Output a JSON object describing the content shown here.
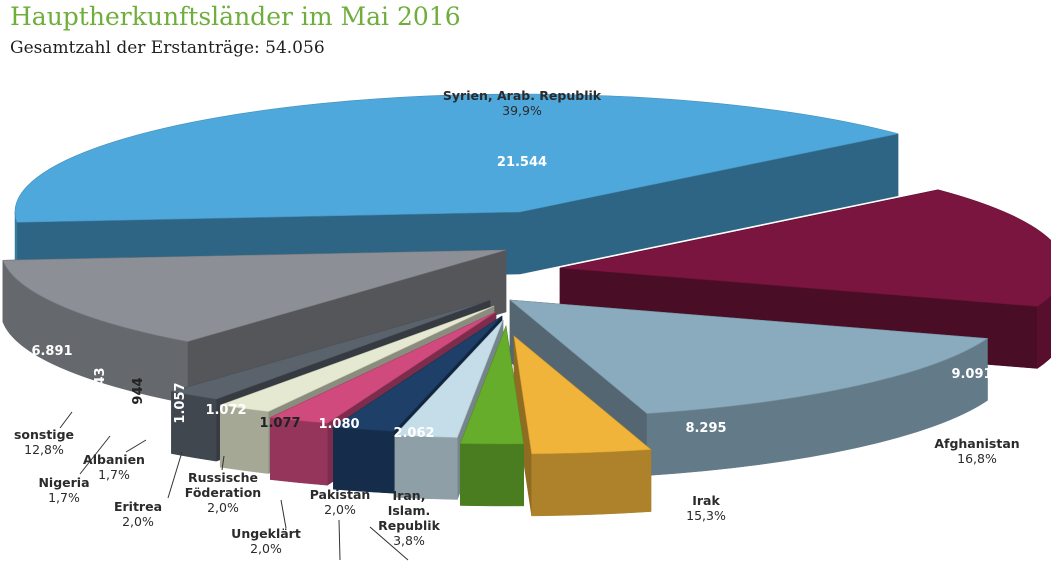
{
  "title": "Hauptherkunftsländer im Mai 2016",
  "subtitle": "Gesamtzahl der Erstanträge: 54.056",
  "chart_data": {
    "type": "pie",
    "title": "Hauptherkunftsländer im Mai 2016",
    "subtitle": "Gesamtzahl der Erstanträge: 54.056",
    "total": "54.056",
    "slices": [
      {
        "name_lines": [
          "Syrien, Arab. Republik"
        ],
        "value": 21544,
        "value_label": "21.544",
        "percent_label": "39,9%",
        "color": "#4fa8dc",
        "value_color": "#ffffff"
      },
      {
        "name_lines": [
          "Afghanistan"
        ],
        "value": 9091,
        "value_label": "9.091",
        "percent_label": "16,8%",
        "color": "#7a1540",
        "value_color": "#ffffff"
      },
      {
        "name_lines": [
          "Irak"
        ],
        "value": 8295,
        "value_label": "8.295",
        "percent_label": "15,3%",
        "color": "#8aaabd",
        "value_color": "#ffffff"
      },
      {
        "name_lines": [
          "Iran,",
          "Islam.",
          "Republik"
        ],
        "value": 2062,
        "value_label": "2.062",
        "percent_label": "3,8%",
        "color": "#f0b43a",
        "value_color": "#ffffff"
      },
      {
        "name_lines": [
          "Pakistan"
        ],
        "value": 1080,
        "value_label": "1.080",
        "percent_label": "2,0%",
        "color": "#66ad2b",
        "value_color": "#ffffff"
      },
      {
        "name_lines": [
          "Ungeklärt"
        ],
        "value": 1077,
        "value_label": "1.077",
        "percent_label": "2,0%",
        "color": "#c5dde8",
        "value_color": "#222222"
      },
      {
        "name_lines": [
          "Russische",
          "Föderation"
        ],
        "value": 1072,
        "value_label": "1.072",
        "percent_label": "2,0%",
        "color": "#1d3f68",
        "value_color": "#ffffff"
      },
      {
        "name_lines": [
          "Eritrea"
        ],
        "value": 1057,
        "value_label": "1.057",
        "percent_label": "2,0%",
        "color": "#d04a7e",
        "value_color": "#ffffff"
      },
      {
        "name_lines": [
          "Albanien"
        ],
        "value": 944,
        "value_label": "944",
        "percent_label": "1,7%",
        "color": "#e6e9d1",
        "value_color": "#222222"
      },
      {
        "name_lines": [
          "Nigeria"
        ],
        "value": 943,
        "value_label": "943",
        "percent_label": "1,7%",
        "color": "#5a626c",
        "value_color": "#ffffff"
      },
      {
        "name_lines": [
          "sonstige"
        ],
        "value": 6891,
        "value_label": "6.891",
        "percent_label": "12,8%",
        "color": "#8c9096",
        "value_color": "#ffffff"
      }
    ]
  }
}
